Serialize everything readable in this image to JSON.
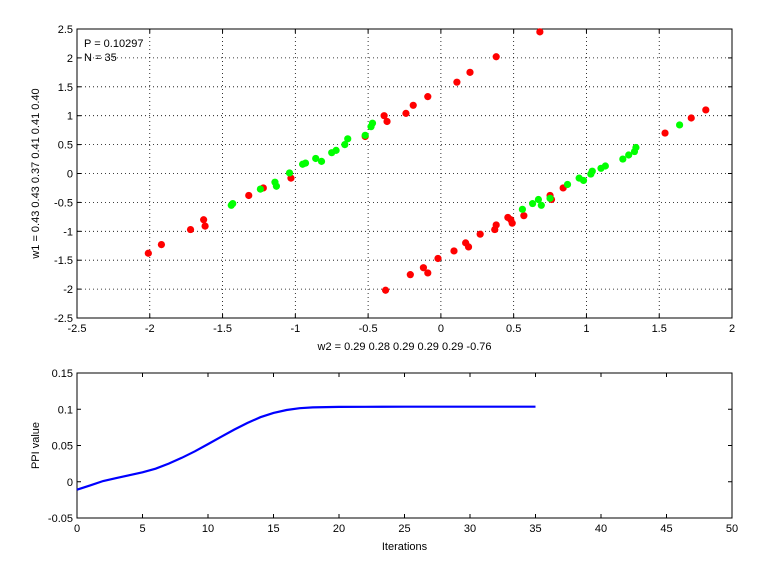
{
  "chart_data": [
    {
      "type": "scatter",
      "xlabel": "w2 = 0.29  0.28  0.29  0.29  0.29  -0.76",
      "ylabel": "w1 = 0.43  0.43  0.37  0.41  0.41  0.40",
      "xlim": [
        -2.5,
        2
      ],
      "ylim": [
        -2.5,
        2.5
      ],
      "xticks": [
        -2.5,
        -2,
        -1.5,
        -1,
        -0.5,
        0,
        0.5,
        1,
        1.5,
        2
      ],
      "yticks": [
        -2.5,
        -2,
        -1.5,
        -1,
        -0.5,
        0,
        0.5,
        1,
        1.5,
        2,
        2.5
      ],
      "grid": true,
      "annotations": [
        "P = 0.10297",
        "N = 35"
      ],
      "colors": {
        "red": "#ff0000",
        "green": "#00ff00"
      },
      "series": [
        {
          "color": "red",
          "points": [
            [
              -2.01,
              -1.38
            ],
            [
              -1.92,
              -1.23
            ],
            [
              -1.72,
              -0.97
            ],
            [
              -1.63,
              -0.8
            ],
            [
              -1.62,
              -0.91
            ],
            [
              -1.32,
              -0.38
            ],
            [
              -1.22,
              -0.25
            ],
            [
              -1.03,
              -0.08
            ],
            [
              -0.52,
              0.64
            ],
            [
              -0.39,
              1.0
            ],
            [
              -0.37,
              0.9
            ],
            [
              -0.24,
              1.04
            ],
            [
              -0.19,
              1.18
            ],
            [
              -0.09,
              1.33
            ],
            [
              0.11,
              1.58
            ],
            [
              0.2,
              1.75
            ],
            [
              0.38,
              2.02
            ],
            [
              0.68,
              2.45
            ],
            [
              -0.38,
              -2.02
            ],
            [
              -0.21,
              -1.75
            ],
            [
              -0.12,
              -1.63
            ],
            [
              -0.09,
              -1.72
            ],
            [
              -0.02,
              -1.47
            ],
            [
              0.09,
              -1.34
            ],
            [
              0.17,
              -1.2
            ],
            [
              0.19,
              -1.27
            ],
            [
              0.27,
              -1.05
            ],
            [
              0.37,
              -0.97
            ],
            [
              0.38,
              -0.89
            ],
            [
              0.46,
              -0.76
            ],
            [
              0.48,
              -0.8
            ],
            [
              0.49,
              -0.86
            ],
            [
              0.57,
              -0.73
            ],
            [
              0.75,
              -0.38
            ],
            [
              0.76,
              -0.45
            ],
            [
              0.84,
              -0.25
            ],
            [
              1.54,
              0.7
            ],
            [
              1.72,
              0.96
            ],
            [
              1.82,
              1.1
            ]
          ]
        },
        {
          "color": "green",
          "points": [
            [
              -1.44,
              -0.55
            ],
            [
              -1.43,
              -0.52
            ],
            [
              -1.24,
              -0.27
            ],
            [
              -1.14,
              -0.15
            ],
            [
              -1.13,
              -0.22
            ],
            [
              -1.04,
              0.01
            ],
            [
              -0.95,
              0.16
            ],
            [
              -0.93,
              0.18
            ],
            [
              -0.86,
              0.26
            ],
            [
              -0.82,
              0.21
            ],
            [
              -0.75,
              0.36
            ],
            [
              -0.72,
              0.4
            ],
            [
              -0.66,
              0.5
            ],
            [
              -0.64,
              0.6
            ],
            [
              -0.52,
              0.66
            ],
            [
              -0.48,
              0.81
            ],
            [
              -0.47,
              0.87
            ],
            [
              0.56,
              -0.62
            ],
            [
              0.63,
              -0.52
            ],
            [
              0.67,
              -0.45
            ],
            [
              0.69,
              -0.55
            ],
            [
              0.75,
              -0.43
            ],
            [
              0.87,
              -0.19
            ],
            [
              0.95,
              -0.08
            ],
            [
              0.98,
              -0.12
            ],
            [
              1.03,
              -0.01
            ],
            [
              1.04,
              0.04
            ],
            [
              1.1,
              0.09
            ],
            [
              1.13,
              0.13
            ],
            [
              1.25,
              0.25
            ],
            [
              1.29,
              0.32
            ],
            [
              1.33,
              0.38
            ],
            [
              1.34,
              0.45
            ],
            [
              1.64,
              0.84
            ]
          ]
        }
      ]
    },
    {
      "type": "line",
      "xlabel": "Iterations",
      "ylabel": "PPI value",
      "xlim": [
        0,
        50
      ],
      "ylim": [
        -0.05,
        0.15
      ],
      "xticks": [
        0,
        5,
        10,
        15,
        20,
        25,
        30,
        35,
        40,
        45,
        50
      ],
      "yticks": [
        -0.05,
        0,
        0.05,
        0.1,
        0.15
      ],
      "grid": false,
      "colors": {
        "line": "#0000ff"
      },
      "series": [
        {
          "x": [
            0,
            1,
            2,
            3,
            4,
            5,
            6,
            7,
            8,
            9,
            10,
            11,
            12,
            13,
            14,
            15,
            16,
            17,
            18,
            19,
            20,
            22,
            25,
            30,
            35
          ],
          "values": [
            -0.011,
            -0.005,
            0.001,
            0.005,
            0.009,
            0.013,
            0.018,
            0.025,
            0.033,
            0.042,
            0.052,
            0.062,
            0.072,
            0.081,
            0.089,
            0.095,
            0.099,
            0.1015,
            0.1025,
            0.103,
            0.1032,
            0.1034,
            0.1035,
            0.1035,
            0.1035
          ]
        }
      ]
    }
  ]
}
